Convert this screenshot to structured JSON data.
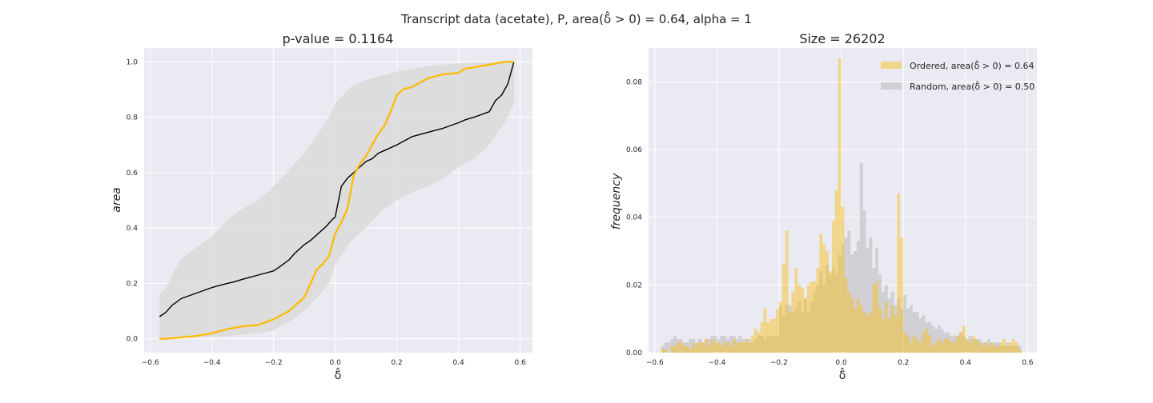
{
  "figure": {
    "suptitle": "Transcript data (acetate), P, area(δ̂ > 0) = 0.64, alpha = 1"
  },
  "colors": {
    "ordered": "#fbbc0e",
    "random_line": "#000000",
    "envelope": "#dcdcdc",
    "axes_bg": "#eaeaf2",
    "grid": "#ffffff"
  },
  "chart_data": [
    {
      "type": "line",
      "title": "p-value = 0.1164",
      "xlabel": "δ̂",
      "ylabel": "area",
      "xlim": [
        -0.62,
        0.64
      ],
      "ylim": [
        -0.05,
        1.05
      ],
      "xticks": [
        -0.6,
        -0.4,
        -0.2,
        0.0,
        0.2,
        0.4,
        0.6
      ],
      "xtick_labels": [
        "−0.6",
        "−0.4",
        "−0.2",
        "0.0",
        "0.2",
        "0.4",
        "0.6"
      ],
      "yticks": [
        0.0,
        0.2,
        0.4,
        0.6,
        0.8,
        1.0
      ],
      "ytick_labels": [
        "0.0",
        "0.2",
        "0.4",
        "0.6",
        "0.8",
        "1.0"
      ],
      "grid": true,
      "band": {
        "x": [
          -0.57,
          -0.55,
          -0.52,
          -0.5,
          -0.45,
          -0.4,
          -0.35,
          -0.3,
          -0.25,
          -0.2,
          -0.15,
          -0.1,
          -0.05,
          -0.02,
          0.0,
          0.05,
          0.1,
          0.15,
          0.2,
          0.25,
          0.3,
          0.35,
          0.4,
          0.45,
          0.5,
          0.55,
          0.58
        ],
        "upper": [
          0.16,
          0.18,
          0.25,
          0.29,
          0.33,
          0.37,
          0.43,
          0.47,
          0.5,
          0.55,
          0.61,
          0.67,
          0.75,
          0.8,
          0.85,
          0.91,
          0.935,
          0.95,
          0.965,
          0.975,
          0.985,
          0.99,
          0.995,
          0.997,
          0.998,
          1.0,
          1.0
        ],
        "lower": [
          0.0,
          0.0,
          0.0,
          0.002,
          0.005,
          0.008,
          0.01,
          0.015,
          0.02,
          0.03,
          0.06,
          0.1,
          0.16,
          0.2,
          0.27,
          0.35,
          0.4,
          0.46,
          0.5,
          0.53,
          0.55,
          0.58,
          0.62,
          0.65,
          0.7,
          0.78,
          0.85
        ]
      },
      "series": [
        {
          "x": [
            -0.57,
            -0.55,
            -0.53,
            -0.5,
            -0.45,
            -0.4,
            -0.35,
            -0.33,
            -0.3,
            -0.25,
            -0.2,
            -0.18,
            -0.15,
            -0.13,
            -0.1,
            -0.08,
            -0.05,
            -0.03,
            -0.01,
            0.0,
            0.02,
            0.04,
            0.06,
            0.08,
            0.1,
            0.12,
            0.14,
            0.16,
            0.2,
            0.25,
            0.3,
            0.35,
            0.4,
            0.42,
            0.45,
            0.5,
            0.52,
            0.54,
            0.56,
            0.58
          ],
          "y": [
            0.08,
            0.095,
            0.12,
            0.145,
            0.165,
            0.185,
            0.2,
            0.205,
            0.215,
            0.23,
            0.245,
            0.26,
            0.285,
            0.31,
            0.34,
            0.355,
            0.385,
            0.405,
            0.43,
            0.44,
            0.55,
            0.58,
            0.6,
            0.62,
            0.64,
            0.65,
            0.67,
            0.68,
            0.7,
            0.73,
            0.745,
            0.76,
            0.78,
            0.79,
            0.8,
            0.82,
            0.86,
            0.88,
            0.92,
            1.0
          ]
        },
        {
          "x": [
            -0.57,
            -0.55,
            -0.5,
            -0.45,
            -0.4,
            -0.35,
            -0.3,
            -0.25,
            -0.2,
            -0.15,
            -0.12,
            -0.1,
            -0.08,
            -0.06,
            -0.04,
            -0.02,
            0.0,
            0.02,
            0.04,
            0.06,
            0.08,
            0.1,
            0.12,
            0.14,
            0.16,
            0.18,
            0.2,
            0.22,
            0.25,
            0.3,
            0.35,
            0.4,
            0.42,
            0.45,
            0.5,
            0.55,
            0.58
          ],
          "y": [
            0.0,
            0.0,
            0.005,
            0.01,
            0.02,
            0.035,
            0.045,
            0.05,
            0.07,
            0.1,
            0.13,
            0.15,
            0.2,
            0.25,
            0.27,
            0.3,
            0.38,
            0.42,
            0.47,
            0.59,
            0.63,
            0.66,
            0.7,
            0.74,
            0.77,
            0.82,
            0.88,
            0.9,
            0.91,
            0.94,
            0.955,
            0.96,
            0.975,
            0.98,
            0.99,
            1.0,
            1.0
          ]
        }
      ]
    },
    {
      "type": "bar",
      "title": "Size = 26202",
      "xlabel": "δ̂",
      "ylabel": "frequency",
      "xlim": [
        -0.62,
        0.63
      ],
      "ylim": [
        0,
        0.09
      ],
      "xticks": [
        -0.6,
        -0.4,
        -0.2,
        0.0,
        0.2,
        0.4,
        0.6
      ],
      "xtick_labels": [
        "−0.6",
        "−0.4",
        "−0.2",
        "0.0",
        "0.2",
        "0.4",
        "0.6"
      ],
      "yticks": [
        0.0,
        0.02,
        0.04,
        0.06,
        0.08
      ],
      "ytick_labels": [
        "0.00",
        "0.02",
        "0.04",
        "0.06",
        "0.08"
      ],
      "grid": true,
      "legend_position": "top-right",
      "bin_start": -0.58,
      "bin_width": 0.01,
      "series": [
        {
          "name": "Ordered, area(δ̂ > 0) = 0.64",
          "color": "#fbbc0e",
          "values": [
            0.001,
            0.001,
            0.0,
            0.002,
            0.002,
            0.003,
            0.003,
            0.002,
            0.002,
            0.001,
            0.003,
            0.002,
            0.003,
            0.003,
            0.004,
            0.002,
            0.004,
            0.003,
            0.003,
            0.002,
            0.003,
            0.003,
            0.002,
            0.004,
            0.003,
            0.003,
            0.003,
            0.004,
            0.003,
            0.005,
            0.007,
            0.006,
            0.009,
            0.013,
            0.009,
            0.01,
            0.01,
            0.013,
            0.015,
            0.026,
            0.036,
            0.012,
            0.018,
            0.025,
            0.02,
            0.019,
            0.016,
            0.02,
            0.021,
            0.021,
            0.025,
            0.035,
            0.032,
            0.03,
            0.024,
            0.039,
            0.048,
            0.087,
            0.043,
            0.022,
            0.018,
            0.016,
            0.013,
            0.016,
            0.014,
            0.012,
            0.011,
            0.012,
            0.02,
            0.021,
            0.013,
            0.01,
            0.015,
            0.01,
            0.014,
            0.011,
            0.047,
            0.034,
            0.006,
            0.005,
            0.003,
            0.005,
            0.004,
            0.003,
            0.006,
            0.007,
            0.005,
            0.002,
            0.003,
            0.004,
            0.003,
            0.004,
            0.004,
            0.003,
            0.003,
            0.005,
            0.006,
            0.008,
            0.004,
            0.003,
            0.005,
            0.004,
            0.003,
            0.002,
            0.003,
            0.002,
            0.003,
            0.002,
            0.002,
            0.003,
            0.004,
            0.002,
            0.003,
            0.004,
            0.003,
            0.001
          ]
        },
        {
          "name": "Random, area(δ̂ > 0) = 0.50",
          "color": "#b0b0b0",
          "values": [
            0.002,
            0.003,
            0.003,
            0.004,
            0.005,
            0.004,
            0.004,
            0.003,
            0.003,
            0.004,
            0.004,
            0.003,
            0.004,
            0.003,
            0.004,
            0.004,
            0.005,
            0.005,
            0.004,
            0.005,
            0.005,
            0.004,
            0.005,
            0.005,
            0.004,
            0.005,
            0.004,
            0.004,
            0.004,
            0.003,
            0.004,
            0.005,
            0.005,
            0.004,
            0.005,
            0.005,
            0.005,
            0.005,
            0.014,
            0.011,
            0.014,
            0.014,
            0.012,
            0.013,
            0.015,
            0.012,
            0.016,
            0.012,
            0.015,
            0.018,
            0.02,
            0.024,
            0.02,
            0.026,
            0.023,
            0.025,
            0.023,
            0.029,
            0.032,
            0.034,
            0.036,
            0.029,
            0.03,
            0.033,
            0.056,
            0.042,
            0.031,
            0.034,
            0.025,
            0.031,
            0.023,
            0.018,
            0.02,
            0.016,
            0.018,
            0.014,
            0.016,
            0.013,
            0.017,
            0.013,
            0.014,
            0.012,
            0.012,
            0.01,
            0.011,
            0.009,
            0.009,
            0.008,
            0.007,
            0.008,
            0.007,
            0.006,
            0.006,
            0.005,
            0.005,
            0.005,
            0.006,
            0.005,
            0.004,
            0.005,
            0.004,
            0.004,
            0.004,
            0.003,
            0.003,
            0.004,
            0.003,
            0.003,
            0.003,
            0.002,
            0.002,
            0.003,
            0.002,
            0.002,
            0.002,
            0.002
          ]
        }
      ]
    }
  ]
}
